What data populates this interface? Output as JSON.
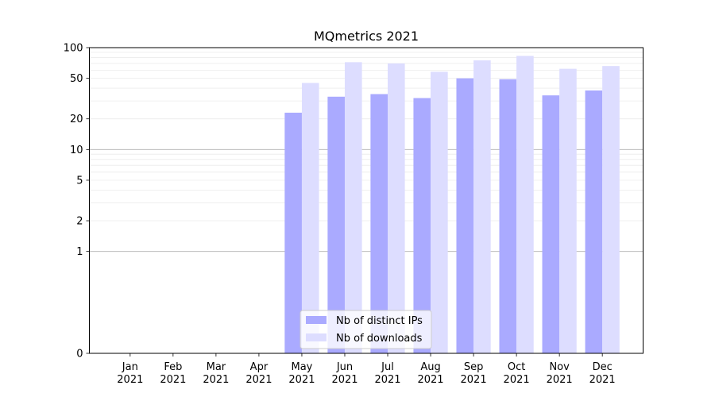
{
  "chart_data": {
    "type": "bar",
    "title": "MQmetrics 2021",
    "xlabel": "",
    "ylabel": "",
    "yscale": "symlog",
    "ylim": [
      0,
      100
    ],
    "yticks": [
      0,
      1,
      2,
      5,
      10,
      20,
      50,
      100
    ],
    "categories": [
      [
        "Jan",
        "2021"
      ],
      [
        "Feb",
        "2021"
      ],
      [
        "Mar",
        "2021"
      ],
      [
        "Apr",
        "2021"
      ],
      [
        "May",
        "2021"
      ],
      [
        "Jun",
        "2021"
      ],
      [
        "Jul",
        "2021"
      ],
      [
        "Aug",
        "2021"
      ],
      [
        "Sep",
        "2021"
      ],
      [
        "Oct",
        "2021"
      ],
      [
        "Nov",
        "2021"
      ],
      [
        "Dec",
        "2021"
      ]
    ],
    "series": [
      {
        "name": "Nb of distinct IPs",
        "color": "#aaaaff",
        "values": [
          0,
          0,
          0,
          0,
          23,
          33,
          35,
          32,
          50,
          49,
          34,
          38
        ]
      },
      {
        "name": "Nb of downloads",
        "color": "#ddddff",
        "values": [
          0,
          0,
          0,
          0,
          45,
          72,
          70,
          58,
          75,
          83,
          62,
          66
        ]
      }
    ],
    "grid": true,
    "legend": "lower-center"
  }
}
